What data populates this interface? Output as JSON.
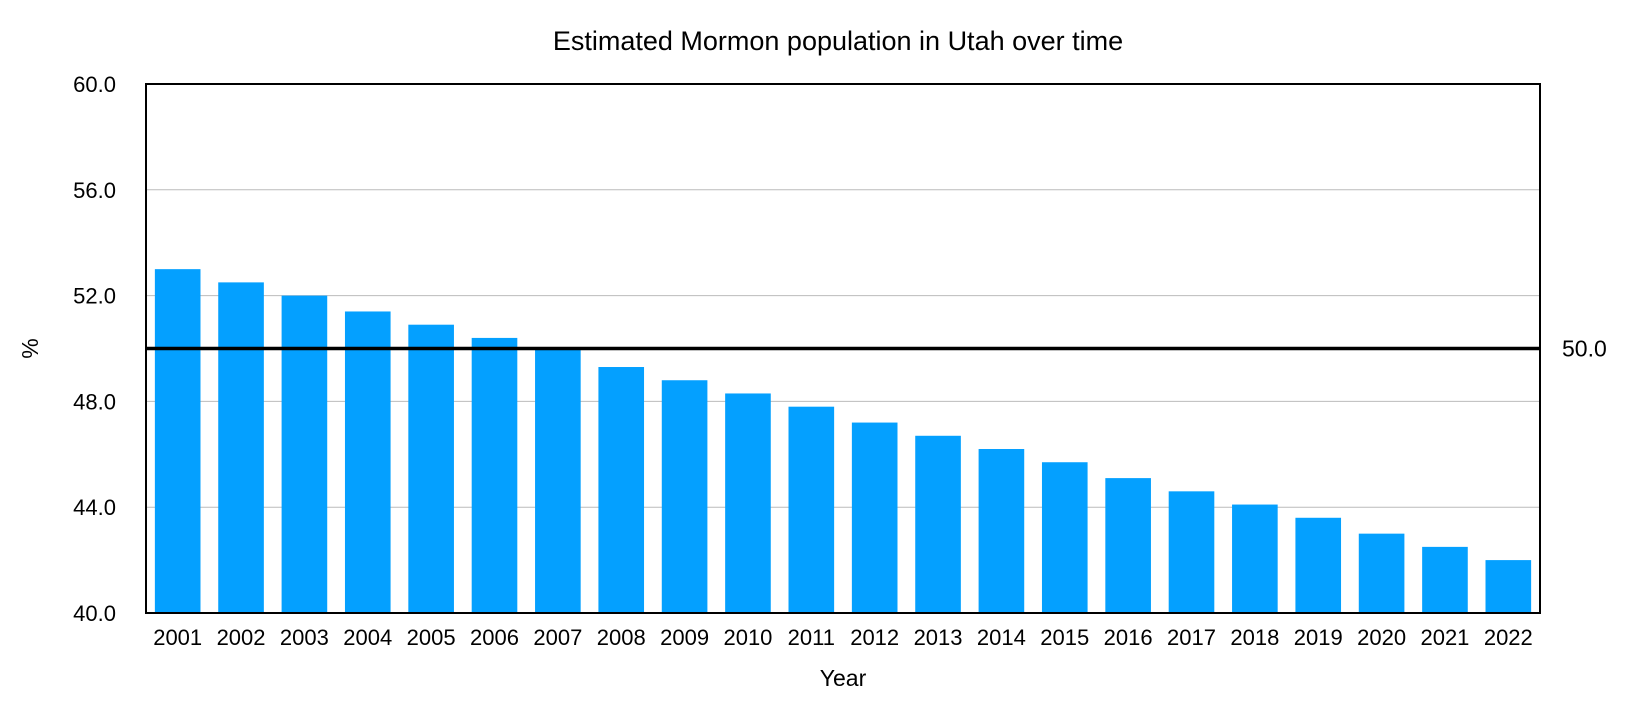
{
  "chart_data": {
    "type": "bar",
    "title": "Estimated Mormon population in Utah over time",
    "xlabel": "Year",
    "ylabel": "%",
    "categories": [
      "2001",
      "2002",
      "2003",
      "2004",
      "2005",
      "2006",
      "2007",
      "2008",
      "2009",
      "2010",
      "2011",
      "2012",
      "2013",
      "2014",
      "2015",
      "2016",
      "2017",
      "2018",
      "2019",
      "2020",
      "2021",
      "2022"
    ],
    "values": [
      53.0,
      52.5,
      52.0,
      51.4,
      50.9,
      50.4,
      50.0,
      49.3,
      48.8,
      48.3,
      47.8,
      47.2,
      46.7,
      46.2,
      45.7,
      45.1,
      44.6,
      44.1,
      43.6,
      43.0,
      42.5,
      42.0
    ],
    "ylim": [
      40.0,
      60.0
    ],
    "yticks": [
      "40.0",
      "44.0",
      "48.0",
      "52.0",
      "56.0",
      "60.0"
    ],
    "reference_line": {
      "value": 50.0,
      "label": "50.0"
    },
    "grid": "horizontal",
    "legend": "none",
    "colors": {
      "bar": "#04a0ff",
      "grid": "#bbbbbb",
      "axis": "#000000",
      "reference_line": "#000000"
    }
  }
}
